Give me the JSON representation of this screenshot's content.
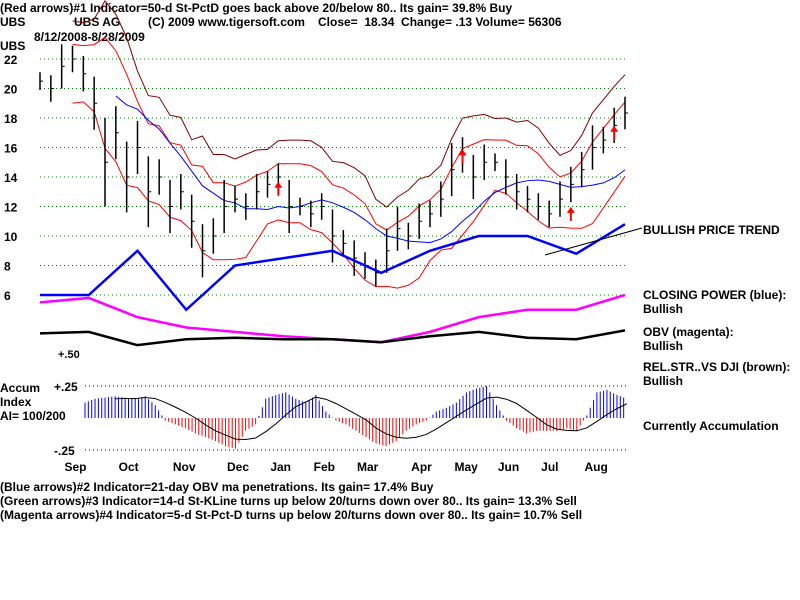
{
  "header": {
    "line1": "(Red arrows)#1 Indicator=50-d St-PctD goes back above 20/below 80.. Its gain= 39.8% Buy",
    "symbol": "UBS",
    "name": "UBS AG",
    "copyright": "(C) 2009 www.tigersoft.com",
    "quote": "Close=  18.34  Change= .13 Volume= 56306",
    "date_range": "8/12/2008-8/28/2009"
  },
  "right_labels": {
    "trend": "BULLISH PRICE TREND",
    "cp_title": "CLOSING POWER (blue):",
    "cp_value": "Bullish",
    "obv_title": "OBV (magenta):",
    "obv_value": "Bullish",
    "rs_title": "REL.STR..VS DJI (brown):",
    "rs_value": "Bullish",
    "accum_status": "Currently Accumulation"
  },
  "accum_label": {
    "line1": "Accum",
    "line2": "Index",
    "line3": "AI= 100/200"
  },
  "footer": {
    "line1": "(Blue arrows)#2 Indicator=21-day OBV ma penetrations. Its gain= 17.4% Buy",
    "line2": "(Green arrows)#3 Indicator=14-d St-KLine turns up below 20/turns down over 80.. Its gain= 13.3% Sell",
    "line3": "(Magenta arrows)#4 Indicator=5-d St-Pct-D turns up below 20/turns down over 80.. Its gain= 10.7% Sell"
  },
  "chart_data": {
    "type": "line",
    "title": "UBS",
    "x_months": [
      "Sep",
      "Oct",
      "Nov",
      "Dec",
      "Jan",
      "Feb",
      "Mar",
      "Apr",
      "May",
      "Jun",
      "Jul",
      "Aug"
    ],
    "x_month_start_week": [
      3,
      8,
      13,
      18,
      22,
      26,
      30,
      35,
      39,
      43,
      47,
      51
    ],
    "yticks": [
      22,
      20,
      18,
      16,
      14,
      12,
      10,
      8,
      6
    ],
    "ylim": [
      2,
      23
    ],
    "grid": true,
    "price_weekly_close": [
      20.5,
      20,
      21.5,
      22,
      21,
      19,
      15,
      17,
      14,
      16,
      13,
      14,
      12,
      13,
      11,
      9,
      10,
      12,
      12.5,
      12,
      13,
      13.5,
      14,
      12,
      12,
      11.5,
      12,
      10,
      9.5,
      8.5,
      8,
      7.5,
      9,
      10.5,
      10,
      11,
      11.5,
      12.5,
      14.5,
      15.5,
      14,
      15,
      15,
      14,
      13,
      12.5,
      12,
      11.5,
      12.5,
      13.5,
      14.5,
      16,
      16.5,
      17.5,
      18.34
    ],
    "closing_power_blue_monthly": [
      6,
      6,
      9,
      5,
      8,
      8.5,
      9,
      7.5,
      9,
      10,
      10,
      8.8,
      10.8
    ],
    "obv_magenta_monthly": [
      5.5,
      5.8,
      4.5,
      3.8,
      3.5,
      3.2,
      3,
      2.8,
      3.5,
      4.5,
      5,
      5,
      6
    ],
    "relstr_brown_monthly": [
      3.4,
      3.5,
      2.6,
      3,
      3.1,
      3.0,
      3.0,
      2.8,
      3.2,
      3.5,
      3.1,
      3.0,
      3.6
    ],
    "relstr_label": "+.50",
    "accum_index": {
      "yticks": [
        "+.25",
        "-.25"
      ],
      "ylim": [
        -0.25,
        0.25
      ],
      "values": [
        0.12,
        0.15,
        0.16,
        0.17,
        0.16,
        0.15,
        0.17,
        0.1,
        -0.02,
        -0.05,
        -0.08,
        -0.12,
        -0.15,
        -0.18,
        -0.22,
        -0.24,
        -0.1,
        -0.05,
        0.15,
        0.18,
        0.2,
        0.15,
        0.12,
        0.18,
        0.05,
        -0.02,
        -0.05,
        -0.1,
        -0.15,
        -0.2,
        -0.22,
        -0.18,
        -0.1,
        -0.05,
        -0.02,
        0.05,
        0.08,
        0.12,
        0.2,
        0.23,
        0.25,
        0.1,
        -0.02,
        -0.08,
        -0.12,
        -0.1,
        -0.1,
        -0.1,
        -0.08,
        -0.1,
        0.02,
        0.2,
        0.22,
        0.18,
        0.15
      ]
    },
    "colors": {
      "price": "#000000",
      "bands": "#ff0000",
      "upper_band": "#800000",
      "ma": "#0000ff",
      "closing_power": "#0000ff",
      "obv": "#ff00ff",
      "accum_pos": "#0000ff",
      "accum_neg": "#ff0000",
      "grid": "#008000"
    }
  }
}
